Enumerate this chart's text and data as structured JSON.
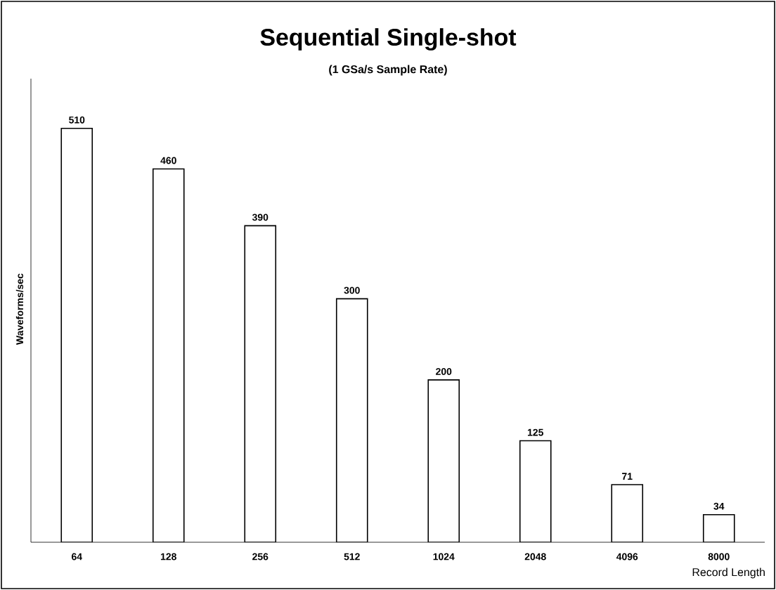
{
  "chart_data": {
    "type": "bar",
    "title": "Sequential Single-shot",
    "subtitle": "(1 GSa/s Sample Rate)",
    "xlabel": "Record Length",
    "ylabel": "Waveforms/sec",
    "categories": [
      "64",
      "128",
      "256",
      "512",
      "1024",
      "2048",
      "4096",
      "8000"
    ],
    "values": [
      510,
      460,
      390,
      300,
      200,
      125,
      71,
      34
    ],
    "color": "#ffffff",
    "data_labels": true,
    "tick_labels": "x"
  }
}
